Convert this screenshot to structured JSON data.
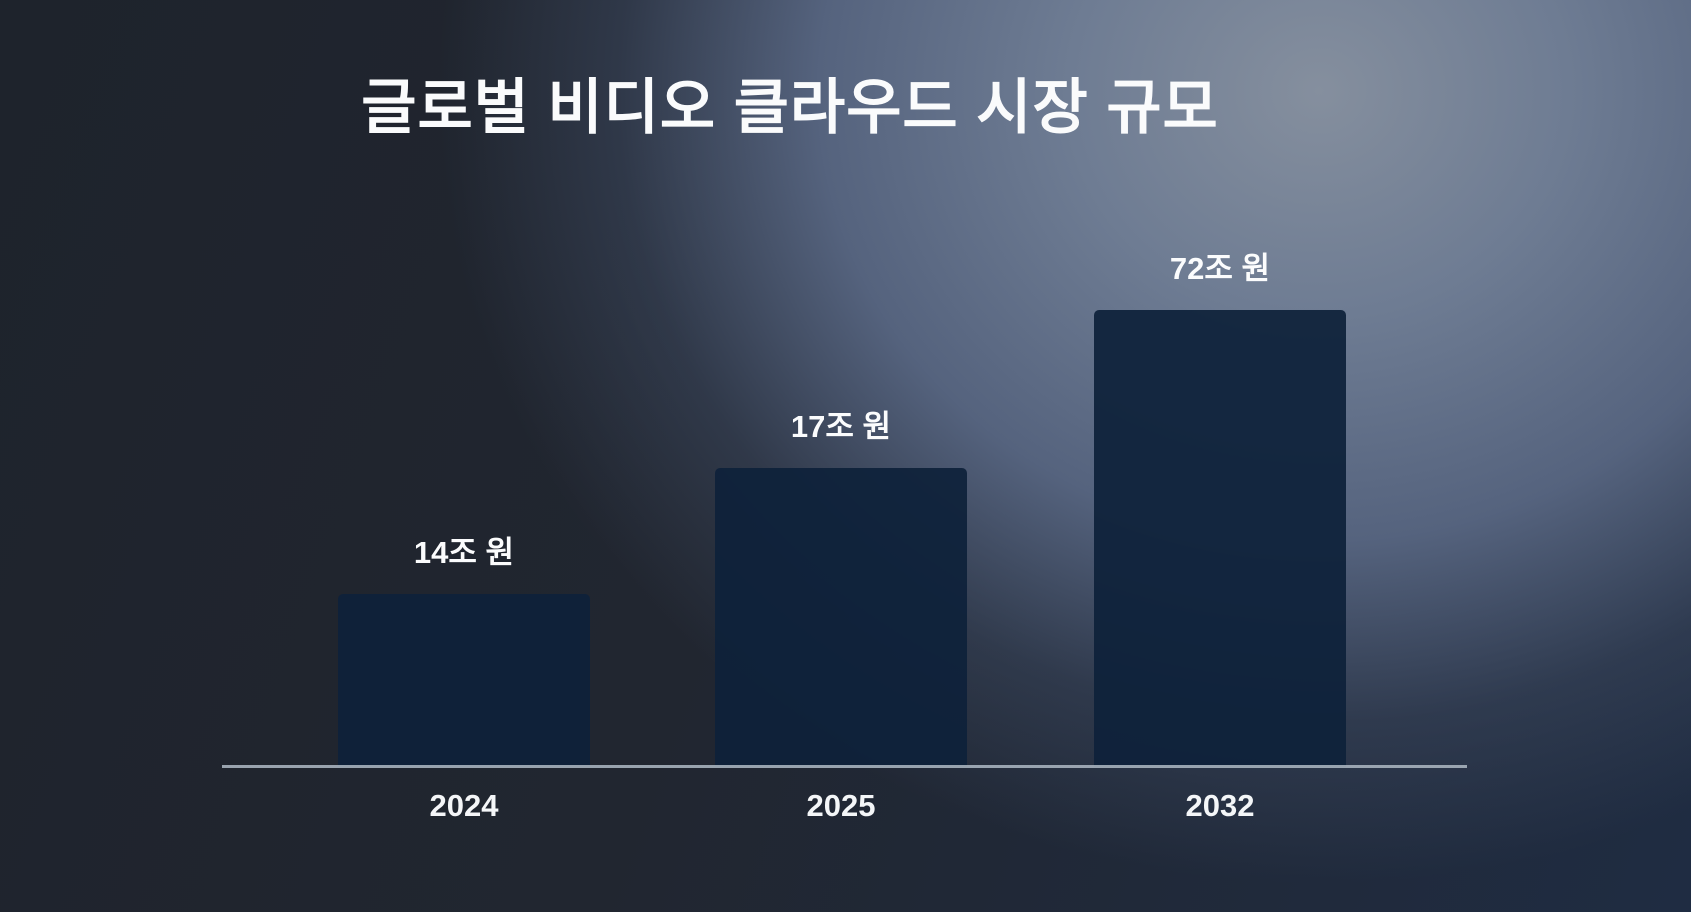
{
  "chart_data": {
    "type": "bar",
    "title": "글로벌 비디오 클라우드 시장 규모",
    "categories": [
      "2024",
      "2025",
      "2032"
    ],
    "values": [
      14,
      17,
      72
    ],
    "unit": "조 원",
    "value_labels": [
      "14조 원",
      "17조 원",
      "72조 원"
    ],
    "xlabel": "",
    "ylabel": "",
    "grid": false,
    "legend": false,
    "axis_baseline": true,
    "bar_count": 3,
    "colors": {
      "bar_fill": "#12253e",
      "axis_line": "#a6b1bd",
      "label_text": "#fafbfc",
      "background_glow": "#828d9c",
      "background_dark": "#20252e"
    }
  }
}
